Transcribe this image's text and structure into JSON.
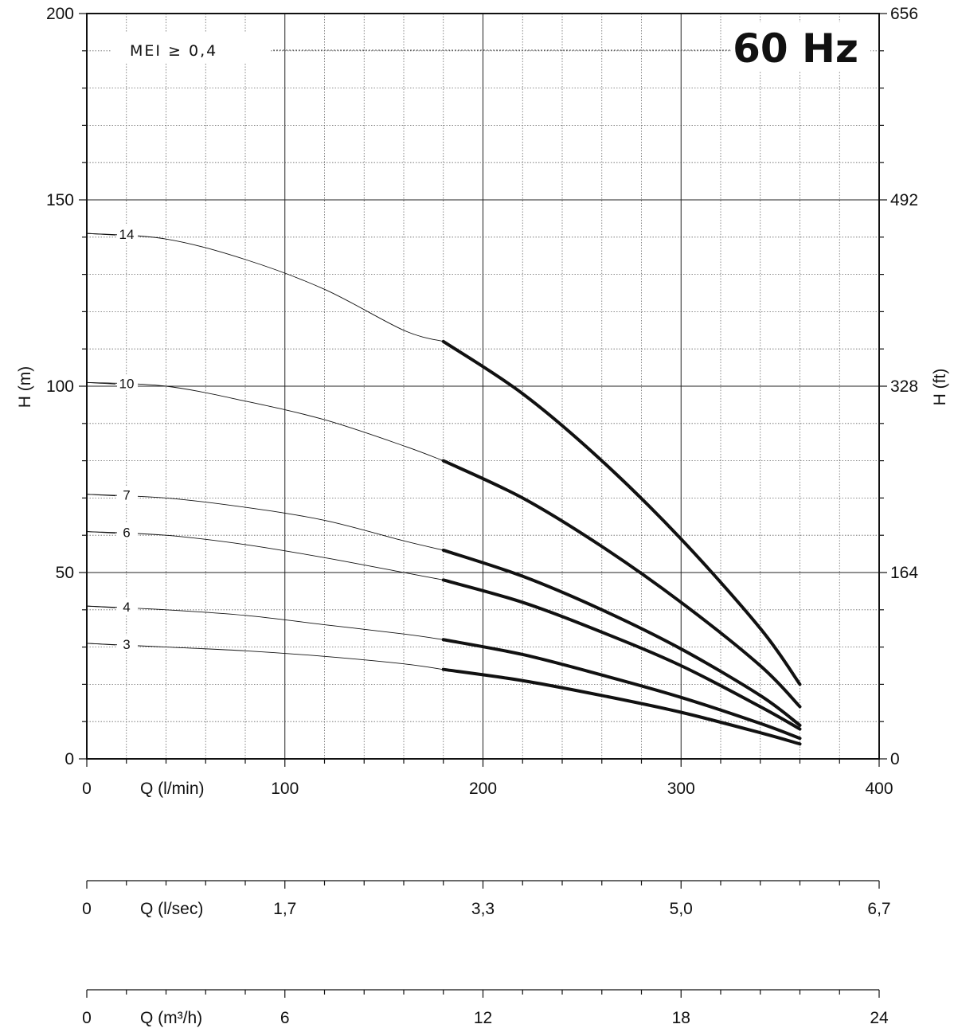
{
  "chart_data": {
    "type": "line",
    "title": "60 Hz",
    "annotation": "MEI ≥ 0,4",
    "xlabel": "Q (l/min)",
    "ylabel_left": "H (m)",
    "ylabel_right": "H (ft)",
    "xlim": [
      0,
      400
    ],
    "ylim": [
      0,
      200
    ],
    "x_ticks": [
      "0",
      "100",
      "200",
      "300",
      "400"
    ],
    "y_ticks_left": [
      "0",
      "50",
      "100",
      "150",
      "200"
    ],
    "y_ticks_right": [
      "0",
      "164",
      "328",
      "492",
      "656"
    ],
    "grid": true,
    "secondary_x_axes": [
      {
        "label": "Q (l/sec)",
        "ticks": [
          "0",
          "1,7",
          "3,3",
          "5,0",
          "6,7"
        ]
      },
      {
        "label": "Q (m³/h)",
        "ticks": [
          "0",
          "6",
          "12",
          "18",
          "24"
        ]
      }
    ],
    "series": [
      {
        "name": "14",
        "shutoff": 141,
        "x": [
          0,
          40,
          80,
          120,
          160,
          180,
          220,
          260,
          300,
          340,
          360
        ],
        "y": [
          141,
          139.5,
          134,
          126,
          115,
          112,
          98,
          80,
          59,
          35,
          20
        ]
      },
      {
        "name": "10",
        "shutoff": 101,
        "x": [
          0,
          40,
          80,
          120,
          160,
          180,
          220,
          260,
          300,
          340,
          360
        ],
        "y": [
          101,
          100,
          96,
          91,
          84,
          80,
          70,
          57,
          42,
          25,
          14
        ]
      },
      {
        "name": "7",
        "shutoff": 71,
        "x": [
          0,
          40,
          80,
          120,
          160,
          180,
          220,
          260,
          300,
          340,
          360
        ],
        "y": [
          71,
          70,
          67.5,
          64,
          58.5,
          56,
          49,
          40,
          29.5,
          17,
          9
        ]
      },
      {
        "name": "6",
        "shutoff": 61,
        "x": [
          0,
          40,
          80,
          120,
          160,
          180,
          220,
          260,
          300,
          340,
          360
        ],
        "y": [
          61,
          60,
          57.5,
          54,
          50,
          48,
          42,
          34,
          25,
          14,
          8
        ]
      },
      {
        "name": "4",
        "shutoff": 41,
        "x": [
          0,
          40,
          80,
          120,
          160,
          180,
          220,
          260,
          300,
          340,
          360
        ],
        "y": [
          41,
          40,
          38.5,
          36,
          33.5,
          32,
          28,
          22.5,
          16.5,
          9.5,
          5.5
        ]
      },
      {
        "name": "3",
        "shutoff": 31,
        "x": [
          0,
          40,
          80,
          120,
          160,
          180,
          220,
          260,
          300,
          340,
          360
        ],
        "y": [
          31,
          30,
          29,
          27.5,
          25.5,
          24,
          21,
          17,
          12.5,
          7,
          4
        ]
      }
    ],
    "preferred_range_start_x": 180
  }
}
